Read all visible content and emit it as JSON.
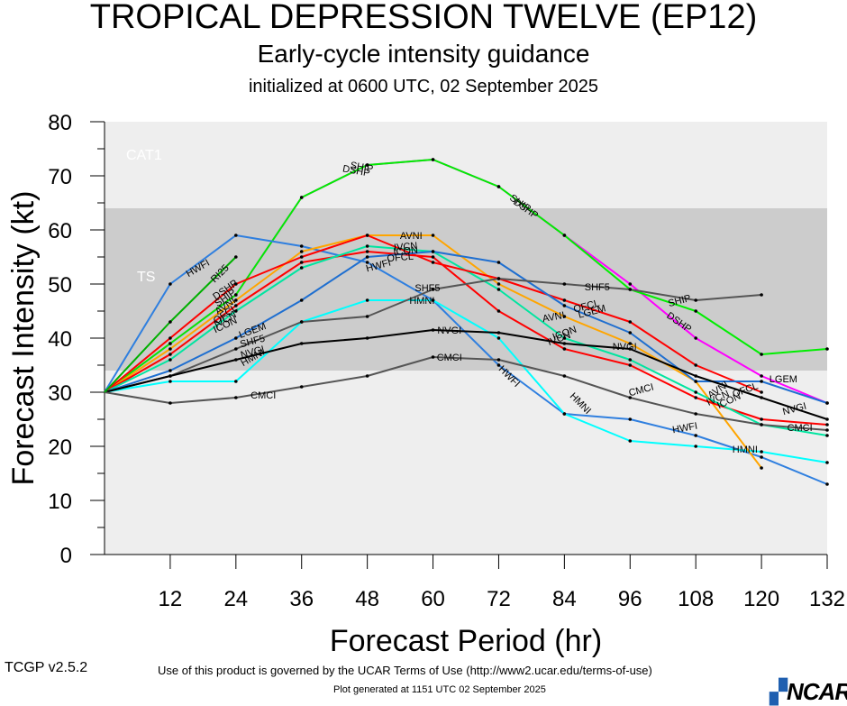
{
  "header": {
    "title": "TROPICAL DEPRESSION TWELVE (EP12)",
    "subtitle": "Early-cycle intensity guidance",
    "initialized": "initialized at 0600 UTC, 02 September 2025"
  },
  "footer": {
    "terms": "Use of this product is governed by the UCAR Terms of Use (http://www2.ucar.edu/terms-of-use)",
    "version": "TCGP v2.5.2",
    "generated": "Plot generated at 1151 UTC   02 September 2025",
    "logo": "NCAR"
  },
  "chart_data": {
    "type": "line",
    "xlabel": "Forecast Period (hr)",
    "ylabel": "Forecast Intensity (kt)",
    "xlim": [
      0,
      132
    ],
    "ylim": [
      0,
      80
    ],
    "xticks": [
      12,
      24,
      36,
      48,
      60,
      72,
      84,
      96,
      108,
      120,
      132
    ],
    "yticks": [
      0,
      10,
      20,
      30,
      40,
      50,
      60,
      70,
      80
    ],
    "bands": [
      {
        "label": "TS",
        "from": 34,
        "to": 64,
        "color": "#cccccc"
      },
      {
        "label": "CAT1",
        "from": 64,
        "to": 80,
        "color": "#eeeeee"
      }
    ],
    "below_band_color": "#eeeeee",
    "series": [
      {
        "name": "DSHP",
        "color": "#ff00ff",
        "x": [
          0,
          12,
          24,
          36,
          48,
          60,
          72,
          84,
          96,
          108,
          120,
          132
        ],
        "y": [
          30,
          39,
          48,
          66,
          72,
          73,
          68,
          59,
          50,
          40,
          33,
          28
        ]
      },
      {
        "name": "SHIP",
        "color": "#00ee00",
        "x": [
          0,
          12,
          24,
          36,
          48,
          60,
          72,
          84,
          96,
          108,
          120,
          132
        ],
        "y": [
          30,
          39,
          48,
          66,
          72,
          73,
          68,
          59,
          49,
          45,
          37,
          38
        ]
      },
      {
        "name": "HWFI",
        "color": "#2f7fdf",
        "x": [
          0,
          12,
          24,
          36,
          48,
          60,
          72,
          84,
          96,
          108,
          120,
          132
        ],
        "y": [
          30,
          50,
          59,
          57,
          54,
          47,
          35,
          26,
          25,
          22,
          18,
          13
        ]
      },
      {
        "name": "HMNI",
        "color": "#00ffff",
        "x": [
          0,
          12,
          24,
          36,
          48,
          60,
          72,
          84,
          96,
          108,
          120,
          132
        ],
        "y": [
          30,
          32,
          32,
          43,
          47,
          47,
          40,
          26,
          21,
          20,
          19,
          17
        ]
      },
      {
        "name": "AVNI",
        "color": "#ffa500",
        "x": [
          0,
          12,
          24,
          36,
          48,
          60,
          72,
          84,
          96,
          108,
          120
        ],
        "y": [
          30,
          38,
          47,
          56,
          59,
          59,
          50,
          44,
          39,
          32,
          16
        ]
      },
      {
        "name": "IVCN",
        "color": "#ff0000",
        "x": [
          0,
          12,
          24,
          36,
          48,
          60,
          72,
          84,
          96,
          108,
          120,
          132
        ],
        "y": [
          30,
          37,
          46,
          54,
          56,
          55,
          45,
          38,
          35,
          29,
          25,
          24
        ]
      },
      {
        "name": "ICON",
        "color": "#00e5a0",
        "x": [
          0,
          12,
          24,
          36,
          48,
          60,
          72,
          84,
          96,
          108,
          120,
          132
        ],
        "y": [
          30,
          36,
          45,
          53,
          57,
          56,
          49,
          40,
          36,
          30,
          24,
          22
        ]
      },
      {
        "name": "OFCL",
        "color": "#ff0000",
        "x": [
          0,
          12,
          24,
          36,
          48,
          60,
          72,
          84,
          96,
          108,
          120
        ],
        "y": [
          30,
          40,
          50,
          55,
          59,
          54,
          51,
          47,
          43,
          35,
          30
        ]
      },
      {
        "name": "LGEM",
        "color": "#1f6fd0",
        "x": [
          0,
          12,
          24,
          36,
          48,
          60,
          72,
          84,
          96,
          108,
          120,
          132
        ],
        "y": [
          30,
          34,
          40,
          47,
          55,
          56,
          54,
          46,
          41,
          32,
          32,
          28
        ]
      },
      {
        "name": "SHF5",
        "color": "#555555",
        "x": [
          0,
          12,
          24,
          36,
          48,
          60,
          72,
          84,
          96,
          108,
          120
        ],
        "y": [
          30,
          33,
          38,
          43,
          44,
          49,
          51,
          50,
          49,
          47,
          48
        ]
      },
      {
        "name": "NVGI",
        "color": "#000000",
        "x": [
          0,
          12,
          24,
          36,
          48,
          60,
          72,
          84,
          96,
          108,
          120,
          132
        ],
        "y": [
          30,
          33,
          36,
          39,
          40,
          41.5,
          41,
          39,
          38,
          33,
          29,
          25
        ]
      },
      {
        "name": "CMCI",
        "color": "#555555",
        "x": [
          0,
          12,
          24,
          36,
          48,
          60,
          72,
          84,
          96,
          108,
          120,
          132
        ],
        "y": [
          30,
          28,
          29,
          31,
          33,
          36.5,
          36,
          33,
          29,
          26,
          24,
          23
        ]
      },
      {
        "name": "RI25",
        "color": "#00b000",
        "x": [
          0,
          12,
          24
        ],
        "y": [
          30,
          43,
          55
        ]
      }
    ],
    "annotations": [
      {
        "text": "HWFI",
        "x": 17,
        "y": 53,
        "angle": -30
      },
      {
        "text": "RI25",
        "x": 21,
        "y": 52,
        "angle": -45
      },
      {
        "text": "DSHP",
        "x": 22,
        "y": 49,
        "angle": -35
      },
      {
        "text": "SHIP",
        "x": 22,
        "y": 47.5,
        "angle": -35
      },
      {
        "text": "AVNI",
        "x": 22,
        "y": 46,
        "angle": -35
      },
      {
        "text": "OFCL",
        "x": 22,
        "y": 44.5,
        "angle": -35
      },
      {
        "text": "IVCN",
        "x": 22,
        "y": 43.5,
        "angle": -30
      },
      {
        "text": "ICON",
        "x": 22,
        "y": 42.5,
        "angle": -25
      },
      {
        "text": "LGEM",
        "x": 27,
        "y": 41.5,
        "angle": -20
      },
      {
        "text": "SHF5",
        "x": 27,
        "y": 39.5,
        "angle": -15
      },
      {
        "text": "NVGI",
        "x": 27,
        "y": 37.5,
        "angle": -15
      },
      {
        "text": "HMNI",
        "x": 27,
        "y": 36.5,
        "angle": -30
      },
      {
        "text": "CMCI",
        "x": 29,
        "y": 29.5,
        "angle": 0
      },
      {
        "text": "DSHP",
        "x": 46,
        "y": 71,
        "angle": 10
      },
      {
        "text": "SHIP",
        "x": 47,
        "y": 71.7,
        "angle": 10
      },
      {
        "text": "AVNI",
        "x": 56,
        "y": 59,
        "angle": 0
      },
      {
        "text": "IVCN",
        "x": 55,
        "y": 57,
        "angle": -5
      },
      {
        "text": "ICON",
        "x": 55,
        "y": 56.2,
        "angle": -5
      },
      {
        "text": "OFCL",
        "x": 54,
        "y": 55,
        "angle": -5
      },
      {
        "text": "HWFI",
        "x": 50,
        "y": 53.5,
        "angle": -15
      },
      {
        "text": "HMNI",
        "x": 58,
        "y": 47,
        "angle": 0
      },
      {
        "text": "SHF5",
        "x": 59,
        "y": 49.3,
        "angle": 0
      },
      {
        "text": "NVGI",
        "x": 63,
        "y": 41.5,
        "angle": 0
      },
      {
        "text": "CMCI",
        "x": 63,
        "y": 36.5,
        "angle": 0
      },
      {
        "text": "DSHP",
        "x": 77,
        "y": 64,
        "angle": 35
      },
      {
        "text": "SHIP",
        "x": 76,
        "y": 65,
        "angle": 35
      },
      {
        "text": "AVNI",
        "x": 82,
        "y": 44,
        "angle": -10
      },
      {
        "text": "OFCL",
        "x": 88,
        "y": 46,
        "angle": -15
      },
      {
        "text": "LGEM",
        "x": 89,
        "y": 45,
        "angle": -15
      },
      {
        "text": "ICON",
        "x": 84,
        "y": 41,
        "angle": -20
      },
      {
        "text": "IVCN",
        "x": 83,
        "y": 40,
        "angle": -20
      },
      {
        "text": "SHF5",
        "x": 90,
        "y": 49.5,
        "angle": 0
      },
      {
        "text": "NVGI",
        "x": 95,
        "y": 38.5,
        "angle": 0
      },
      {
        "text": "CMCI",
        "x": 98,
        "y": 30.5,
        "angle": -15
      },
      {
        "text": "HWFI",
        "x": 74,
        "y": 33,
        "angle": 45
      },
      {
        "text": "HMNI",
        "x": 87,
        "y": 28,
        "angle": 45
      },
      {
        "text": "SHIP",
        "x": 105,
        "y": 47,
        "angle": -15
      },
      {
        "text": "DSHP",
        "x": 105,
        "y": 43,
        "angle": 35
      },
      {
        "text": "HWFI",
        "x": 106,
        "y": 23.5,
        "angle": -10
      },
      {
        "text": "HMNI",
        "x": 117,
        "y": 19.5,
        "angle": 0
      },
      {
        "text": "AVNI",
        "x": 112,
        "y": 30.5,
        "angle": -35
      },
      {
        "text": "IVCN",
        "x": 112,
        "y": 29,
        "angle": -25
      },
      {
        "text": "ICON",
        "x": 114,
        "y": 28.5,
        "angle": -25
      },
      {
        "text": "OFCL",
        "x": 117,
        "y": 30.5,
        "angle": -20
      },
      {
        "text": "LGEM",
        "x": 124,
        "y": 32.5,
        "angle": 0
      },
      {
        "text": "NVGI",
        "x": 126,
        "y": 27,
        "angle": -15
      },
      {
        "text": "CMCI",
        "x": 127,
        "y": 23.5,
        "angle": 0
      }
    ]
  }
}
